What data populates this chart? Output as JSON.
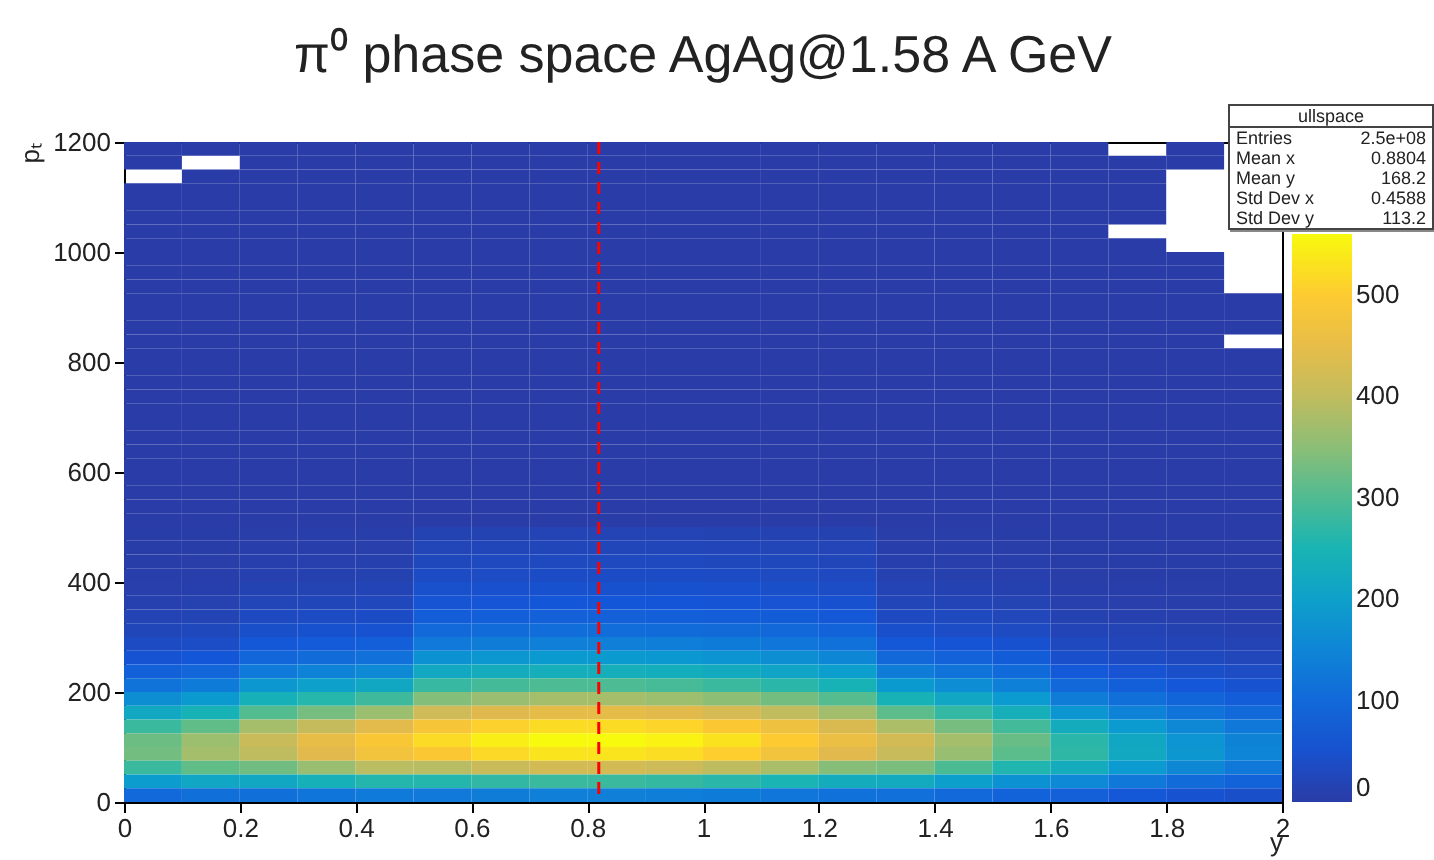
{
  "chart_data": {
    "type": "heatmap",
    "title": "π⁰ phase space AgAg@1.58 A GeV",
    "xlabel": "y",
    "ylabel": "pₜ",
    "xlim": [
      0,
      2
    ],
    "xticks": [
      0,
      0.2,
      0.4,
      0.6,
      0.8,
      1,
      1.2,
      1.4,
      1.6,
      1.8,
      2
    ],
    "ylim": [
      0,
      1200
    ],
    "yticks": [
      0,
      200,
      400,
      600,
      800,
      1000,
      1200
    ],
    "clim": [
      0,
      560
    ],
    "cticks": [
      0,
      100,
      200,
      300,
      400,
      500
    ],
    "colors": [
      "#2a3ca6",
      "#1456d8",
      "#1076da",
      "#0b9bd0",
      "#18b4b4",
      "#5cbd8a",
      "#a9be6a",
      "#e0b94e",
      "#fdc932",
      "#f8fa0d"
    ],
    "ref_lines": [
      {
        "axis": "x",
        "value": 0.82,
        "color": "#ff0000",
        "line_style": "dashed"
      }
    ],
    "annotations": [
      "ullspace",
      "Entries 2.5e+08",
      "Mean x 0.8804",
      "Mean y 168.2",
      "Std Dev x 0.4588",
      "Std Dev y 113.2"
    ],
    "cells": [
      [
        1,
        1,
        1,
        1,
        1,
        1,
        1,
        1,
        1,
        1,
        1,
        1,
        1,
        1,
        1,
        1,
        1,
        null,
        1,
        null
      ],
      [
        1,
        null,
        1,
        1,
        1,
        1,
        1,
        1,
        1,
        1,
        1,
        1,
        1,
        1,
        1,
        1,
        1,
        1,
        1,
        null
      ],
      [
        null,
        1,
        1,
        1,
        1,
        1,
        1,
        1,
        1,
        1,
        1,
        1,
        1,
        1,
        1,
        1,
        1,
        1,
        null,
        null
      ],
      [
        1,
        1,
        1,
        1,
        1,
        1,
        1,
        1,
        1,
        1,
        1,
        1,
        1,
        1,
        1,
        1,
        1,
        1,
        null,
        null
      ],
      [
        1,
        1,
        1,
        1,
        1,
        1,
        1,
        1,
        1,
        1,
        1,
        1,
        1,
        1,
        1,
        1,
        1,
        1,
        null,
        null
      ],
      [
        1,
        1,
        1,
        1,
        1,
        1,
        1,
        1,
        1,
        1,
        1,
        1,
        1,
        1,
        1,
        1,
        1,
        1,
        null,
        null
      ],
      [
        1,
        1,
        1,
        1,
        1,
        1,
        1,
        1,
        1,
        1,
        1,
        1,
        1,
        1,
        1,
        1,
        1,
        null,
        null,
        null
      ],
      [
        1,
        1,
        1,
        1,
        1,
        1,
        1,
        1,
        1,
        1,
        1,
        1,
        1,
        1,
        1,
        1,
        1,
        1,
        null,
        null
      ],
      [
        1,
        1,
        1,
        1,
        1,
        1,
        1,
        1,
        1,
        1,
        1,
        1,
        1,
        1,
        1,
        1,
        1,
        1,
        1,
        null
      ],
      [
        1,
        1,
        1,
        1,
        1,
        1,
        1,
        1,
        1,
        1,
        1,
        1,
        1,
        1,
        1,
        1,
        1,
        1,
        1,
        null
      ],
      [
        1,
        1,
        1,
        1,
        1,
        1,
        1,
        1,
        1,
        1,
        1,
        1,
        1,
        1,
        1,
        1,
        1,
        1,
        1,
        null
      ],
      [
        1,
        1,
        1,
        1,
        1,
        1,
        1,
        1,
        1,
        1,
        1,
        1,
        1,
        1,
        1,
        1,
        1,
        1,
        1,
        1
      ],
      [
        1,
        1,
        1,
        1,
        1,
        1,
        1,
        1,
        1,
        1,
        1,
        1,
        1,
        1,
        1,
        1,
        1,
        1,
        1,
        1
      ],
      [
        1,
        1,
        1,
        1,
        1,
        1,
        1,
        1,
        1,
        1,
        1,
        1,
        1,
        1,
        1,
        1,
        1,
        1,
        1,
        1
      ],
      [
        1,
        1,
        1,
        1,
        1,
        1,
        1,
        1,
        1,
        1,
        1,
        1,
        1,
        1,
        1,
        1,
        1,
        1,
        1,
        null
      ],
      [
        1,
        1,
        1,
        1,
        1,
        1,
        1,
        1,
        1,
        1,
        1,
        1,
        1,
        1,
        1,
        1,
        1,
        1,
        1,
        1
      ],
      [
        1,
        1,
        1,
        1,
        1,
        1,
        1,
        1,
        1,
        1,
        1,
        1,
        1,
        1,
        1,
        1,
        1,
        1,
        1,
        1
      ],
      [
        1,
        1,
        1,
        1,
        1,
        1,
        1,
        1,
        1,
        1,
        1,
        1,
        1,
        1,
        1,
        1,
        1,
        1,
        1,
        1
      ],
      [
        1,
        1,
        1,
        1,
        1,
        1,
        1,
        1,
        1,
        1,
        1,
        1,
        1,
        1,
        1,
        1,
        1,
        1,
        1,
        1
      ],
      [
        1,
        1,
        1,
        1,
        1,
        1,
        1,
        1,
        1,
        1,
        1,
        1,
        1,
        1,
        1,
        1,
        1,
        1,
        1,
        1
      ],
      [
        1,
        1,
        1,
        1,
        1,
        1,
        1,
        1,
        1,
        1,
        1,
        1,
        1,
        1,
        1,
        1,
        1,
        1,
        1,
        1
      ],
      [
        1,
        1,
        1,
        1,
        1,
        1,
        1,
        1,
        1,
        1,
        1,
        1,
        1,
        1,
        1,
        1,
        1,
        1,
        1,
        1
      ],
      [
        1,
        1,
        1,
        1,
        1,
        1,
        1,
        1,
        1,
        1,
        1,
        1,
        1,
        1,
        1,
        1,
        1,
        1,
        1,
        1
      ],
      [
        1,
        1,
        1,
        1,
        1,
        1,
        1,
        1,
        1,
        1,
        1,
        1,
        1,
        1,
        1,
        1,
        1,
        1,
        1,
        1
      ],
      [
        1,
        1,
        1,
        1,
        1,
        1,
        1,
        1,
        1,
        1,
        1,
        1,
        1,
        1,
        1,
        1,
        1,
        1,
        1,
        1
      ],
      [
        1,
        1,
        1,
        1,
        1,
        1,
        1,
        1,
        1,
        1,
        1,
        1,
        1,
        1,
        1,
        1,
        1,
        1,
        1,
        1
      ],
      [
        1,
        1,
        1,
        1,
        1,
        1,
        1,
        1,
        1,
        1,
        1,
        1,
        1,
        1,
        1,
        1,
        1,
        1,
        1,
        1
      ],
      [
        1,
        1,
        1,
        1,
        1,
        1,
        1,
        1,
        1,
        1,
        1,
        1,
        1,
        1,
        1,
        1,
        1,
        1,
        1,
        1
      ],
      [
        2,
        2,
        4,
        5,
        5,
        16,
        16,
        17,
        17,
        17,
        16,
        15,
        14,
        4,
        4,
        3,
        1,
        1,
        1,
        1
      ],
      [
        2,
        3,
        6,
        6,
        7,
        23,
        25,
        25,
        25,
        25,
        24,
        23,
        21,
        6,
        5,
        4,
        2,
        2,
        1,
        1
      ],
      [
        3,
        4,
        8,
        9,
        10,
        29,
        30,
        31,
        31,
        30,
        29,
        28,
        25,
        8,
        7,
        6,
        3,
        2,
        2,
        2
      ],
      [
        5,
        6,
        11,
        13,
        14,
        36,
        38,
        39,
        39,
        39,
        37,
        35,
        32,
        12,
        10,
        9,
        4,
        3,
        3,
        2
      ],
      [
        7,
        8,
        16,
        18,
        20,
        47,
        49,
        50,
        50,
        50,
        48,
        45,
        41,
        17,
        15,
        13,
        6,
        5,
        4,
        3
      ],
      [
        11,
        12,
        23,
        25,
        27,
        57,
        60,
        62,
        62,
        61,
        58,
        55,
        51,
        23,
        20,
        18,
        9,
        7,
        6,
        5
      ],
      [
        17,
        19,
        33,
        36,
        39,
        75,
        79,
        81,
        81,
        80,
        77,
        73,
        67,
        34,
        30,
        26,
        14,
        11,
        9,
        8
      ],
      [
        25,
        28,
        45,
        50,
        54,
        99,
        104,
        106,
        106,
        105,
        101,
        95,
        87,
        46,
        41,
        35,
        20,
        17,
        14,
        11
      ],
      [
        36,
        41,
        66,
        72,
        78,
        130,
        136,
        140,
        140,
        138,
        133,
        125,
        115,
        67,
        59,
        51,
        30,
        24,
        20,
        17
      ],
      [
        56,
        63,
        94,
        104,
        113,
        172,
        180,
        185,
        185,
        182,
        175,
        165,
        152,
        97,
        85,
        74,
        46,
        37,
        31,
        26
      ],
      [
        83,
        93,
        131,
        144,
        157,
        218,
        229,
        235,
        235,
        231,
        223,
        210,
        193,
        134,
        118,
        102,
        68,
        55,
        45,
        38
      ],
      [
        119,
        133,
        180,
        198,
        216,
        276,
        289,
        297,
        297,
        292,
        281,
        265,
        244,
        185,
        163,
        141,
        97,
        79,
        65,
        54
      ],
      [
        165,
        185,
        238,
        261,
        284,
        343,
        360,
        370,
        370,
        363,
        350,
        330,
        304,
        244,
        215,
        186,
        135,
        110,
        90,
        75
      ],
      [
        218,
        244,
        303,
        333,
        363,
        416,
        436,
        448,
        448,
        440,
        424,
        400,
        368,
        311,
        274,
        237,
        178,
        145,
        119,
        99
      ],
      [
        281,
        315,
        369,
        405,
        441,
        484,
        507,
        521,
        521,
        512,
        493,
        465,
        428,
        378,
        333,
        288,
        230,
        187,
        153,
        128
      ],
      [
        323,
        363,
        410,
        450,
        490,
        520,
        545,
        560,
        560,
        550,
        530,
        500,
        460,
        420,
        370,
        320,
        265,
        216,
        176,
        147
      ],
      [
        330,
        370,
        398,
        437,
        475,
        494,
        518,
        532,
        532,
        523,
        504,
        475,
        437,
        407,
        359,
        310,
        270,
        220,
        180,
        150
      ],
      [
        281,
        315,
        328,
        360,
        392,
        390,
        409,
        420,
        420,
        413,
        398,
        375,
        345,
        336,
        296,
        256,
        230,
        187,
        153,
        128
      ],
      [
        191,
        215,
        217,
        239,
        260,
        260,
        273,
        280,
        280,
        275,
        265,
        250,
        230,
        223,
        196,
        170,
        157,
        128,
        104,
        87
      ],
      [
        99,
        111,
        111,
        122,
        132,
        130,
        136,
        140,
        140,
        138,
        133,
        125,
        115,
        113,
        100,
        86,
        81,
        66,
        54,
        45
      ]
    ]
  }
}
